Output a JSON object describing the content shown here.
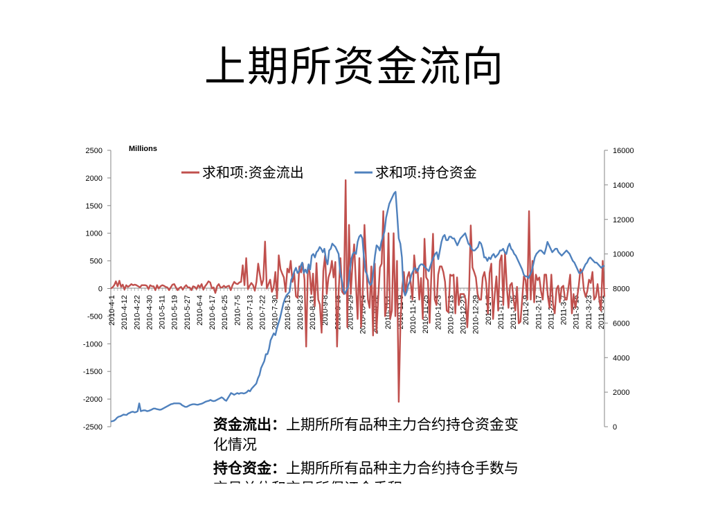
{
  "title": "上期所资金流向",
  "chart_data": {
    "type": "line",
    "units_label": "Millions",
    "x_tick_labels": [
      "2010-4-1",
      "2010-4-12",
      "2010-4-22",
      "2010-4-30",
      "2010-5-11",
      "2010-5-19",
      "2010-5-27",
      "2010-6-4",
      "2010-6-17",
      "2010-6-25",
      "2010-7-5",
      "2010-7-13",
      "2010-7-22",
      "2010-7-30",
      "2010-8-13",
      "2010-8-23",
      "2010-8-31",
      "2010-9-8",
      "2010-9-16",
      "2010-9-29",
      "2010-10-14",
      "2010-10-22",
      "2010-11-1",
      "2010-11-9",
      "2010-11-17",
      "2010-11-25",
      "2010-12-3",
      "2010-12-13",
      "2010-12-21",
      "2010-12-29",
      "2011-1-7",
      "2011-1-17",
      "2011-1-25",
      "2011-2-9",
      "2011-2-17",
      "2011-2-25",
      "2011-3-7",
      "2011-3-15",
      "2011-3-23",
      "2011-3-31"
    ],
    "y_left": {
      "min": -2500,
      "max": 2500,
      "ticks": [
        2500,
        2000,
        1500,
        1000,
        500,
        0,
        -500,
        -1000,
        -1500,
        -2000,
        -2500
      ]
    },
    "y_right": {
      "min": 0,
      "max": 16000,
      "ticks": [
        16000,
        14000,
        12000,
        10000,
        8000,
        6000,
        4000,
        2000,
        0
      ]
    },
    "legend": "top",
    "grid": false,
    "series": [
      {
        "name": "求和项:资金流出",
        "axis": "left",
        "color": "#c0504d",
        "values": [
          0,
          20,
          60,
          130,
          40,
          140,
          30,
          70,
          -20,
          60,
          30,
          50,
          80,
          60,
          70,
          60,
          40,
          20,
          60,
          60,
          60,
          50,
          -10,
          60,
          40,
          40,
          -30,
          60,
          0,
          40,
          60,
          50,
          30,
          20,
          -30,
          20,
          70,
          80,
          20,
          -30,
          10,
          30,
          -20,
          30,
          60,
          20,
          20,
          -30,
          40,
          30,
          -10,
          60,
          20,
          80,
          -20,
          40,
          80,
          130,
          110,
          0,
          20,
          -80,
          40,
          80,
          20,
          20,
          50,
          20,
          40,
          50,
          -30,
          60,
          120,
          90,
          80,
          110,
          120,
          420,
          60,
          550,
          -10,
          50,
          100,
          60,
          -40,
          120,
          450,
          250,
          60,
          160,
          850,
          0,
          80,
          160,
          -60,
          20,
          300,
          -180,
          600,
          350,
          270,
          200,
          -60,
          360,
          290,
          500,
          120,
          280,
          -140,
          -170,
          400,
          290,
          450,
          160,
          -1050,
          380,
          300,
          -100,
          270,
          -320,
          460,
          -200,
          -290,
          -800,
          320,
          600,
          -100,
          200,
          300,
          500,
          200,
          480,
          -1050,
          0,
          550,
          -60,
          -100,
          1960,
          -700,
          1150,
          -100,
          450,
          800,
          100,
          -550,
          550,
          -700,
          -100,
          1150,
          450,
          -200,
          -350,
          400,
          -850,
          450,
          -800,
          -180,
          380,
          450,
          1400,
          -500,
          -300,
          1000,
          -550,
          -400,
          1000,
          -500,
          500,
          -2050,
          -600,
          20,
          300,
          -100,
          200,
          300,
          100,
          -200,
          600,
          280,
          360,
          -200,
          190,
          -550,
          900,
          200,
          150,
          -620,
          250,
          990,
          -200,
          -300,
          250,
          400,
          400,
          300,
          120,
          -400,
          -430,
          250,
          230,
          250,
          -450,
          200,
          -300,
          -100,
          -100,
          -100,
          -200,
          -700,
          -100,
          1140,
          380,
          300,
          200,
          -100,
          -200,
          -200,
          200,
          300,
          100,
          -450,
          280,
          450,
          -550,
          -100,
          220,
          -400,
          500,
          600,
          -300,
          650,
          50,
          -350,
          60,
          100,
          -200,
          -400,
          30,
          -630,
          -600,
          -200,
          220,
          150,
          -200,
          1400,
          -200,
          500,
          -250,
          250,
          150,
          200,
          -50,
          -200,
          250,
          250,
          -150,
          -350,
          250,
          -280,
          -450,
          -10,
          50,
          -250,
          20,
          50,
          -200,
          -200,
          20,
          250,
          -450,
          -100,
          -350,
          -180,
          50,
          350,
          300,
          -30,
          -150,
          -50,
          160,
          100,
          300,
          -200,
          -150,
          80,
          -200,
          -400,
          500,
          -150
        ]
      },
      {
        "name": "求和项:持仓资金",
        "axis": "right",
        "color": "#4f81bd",
        "values": [
          300,
          320,
          350,
          420,
          520,
          580,
          600,
          650,
          700,
          690,
          680,
          760,
          800,
          850,
          870,
          830,
          850,
          900,
          1350,
          900,
          930,
          950,
          940,
          900,
          920,
          960,
          1000,
          1050,
          1050,
          1020,
          1000,
          980,
          1000,
          1050,
          1100,
          1150,
          1200,
          1250,
          1300,
          1320,
          1350,
          1350,
          1350,
          1350,
          1330,
          1250,
          1200,
          1150,
          1150,
          1200,
          1250,
          1280,
          1300,
          1300,
          1280,
          1270,
          1300,
          1320,
          1350,
          1400,
          1450,
          1480,
          1500,
          1550,
          1500,
          1480,
          1500,
          1550,
          1600,
          1650,
          1700,
          1650,
          1550,
          1500,
          1650,
          1800,
          1950,
          1900,
          1850,
          1900,
          1950,
          1900,
          1950,
          1950,
          1920,
          1950,
          2000,
          2100,
          2050,
          2200,
          2300,
          2400,
          2500,
          2800,
          3000,
          3400,
          3600,
          3800,
          4200,
          4200,
          4500,
          5000,
          5200,
          5400,
          5300,
          5700,
          6000,
          6300,
          6700,
          7100,
          7400,
          7600,
          7700,
          7800,
          8500,
          8700,
          9000,
          9200,
          8900,
          9000,
          9300,
          9500,
          8900,
          9100,
          8900,
          9400,
          9100,
          9900,
          10000,
          9800,
          10100,
          10200,
          10400,
          10300,
          10100,
          10300,
          9700,
          9400,
          10200,
          10300,
          10600,
          10500,
          10400,
          10200,
          10000,
          8900,
          8500,
          7900,
          7700,
          7900,
          8100,
          9000,
          9700,
          10000,
          10100,
          10000,
          10700,
          11000,
          11100,
          10900,
          9800,
          9000,
          8800,
          8400,
          8200,
          8300,
          9100,
          9900,
          10500,
          10400,
          10200,
          10700,
          11000,
          11300,
          12100,
          12500,
          12900,
          13100,
          13300,
          13500,
          13600,
          12300,
          10900,
          10600,
          9800,
          7900,
          7600,
          7800,
          8200,
          8400,
          8800,
          9000,
          9200,
          9100,
          9000,
          9300,
          9400,
          9400,
          9300,
          9200,
          9100,
          9000,
          9300,
          9600,
          9800,
          10000,
          10100,
          9700,
          10200,
          10700,
          11000,
          11100,
          10800,
          10800,
          11000,
          11000,
          10900,
          10900,
          10700,
          10500,
          10700,
          10900,
          11000,
          11100,
          11200,
          10900,
          10600,
          10500,
          10300,
          10200,
          10200,
          10300,
          10400,
          10700,
          10600,
          10300,
          9800,
          9800,
          9600,
          9800,
          9700,
          9900,
          10000,
          9800,
          9900,
          10000,
          10200,
          10200,
          10300,
          10100,
          10000,
          10400,
          10600,
          10300,
          10200,
          10000,
          9900,
          9700,
          9500,
          9300,
          9100,
          8800,
          8700,
          8700,
          8600,
          8800,
          9000,
          9400,
          9800,
          10000,
          10100,
          10200,
          10200,
          10100,
          10000,
          10300,
          10700,
          10500,
          10300,
          10100,
          10200,
          10300,
          10300,
          10100,
          10000,
          9900,
          10000,
          10100,
          10200,
          10100,
          10000,
          9800,
          9600,
          9500,
          9300,
          9100,
          8900,
          8900,
          9000,
          9200,
          9400,
          9500,
          9700,
          9800,
          9700,
          9600,
          9500,
          9500,
          9400,
          9300,
          9200,
          9300,
          9300
        ]
      }
    ]
  },
  "notes": [
    {
      "term": "资金流出：",
      "text": "上期所所有品种主力合约持仓资金变化情况"
    },
    {
      "term": "持仓资金：",
      "text": "上期所所有品种主力合约持仓手数与交易单位和交易所保证金乘积"
    }
  ]
}
